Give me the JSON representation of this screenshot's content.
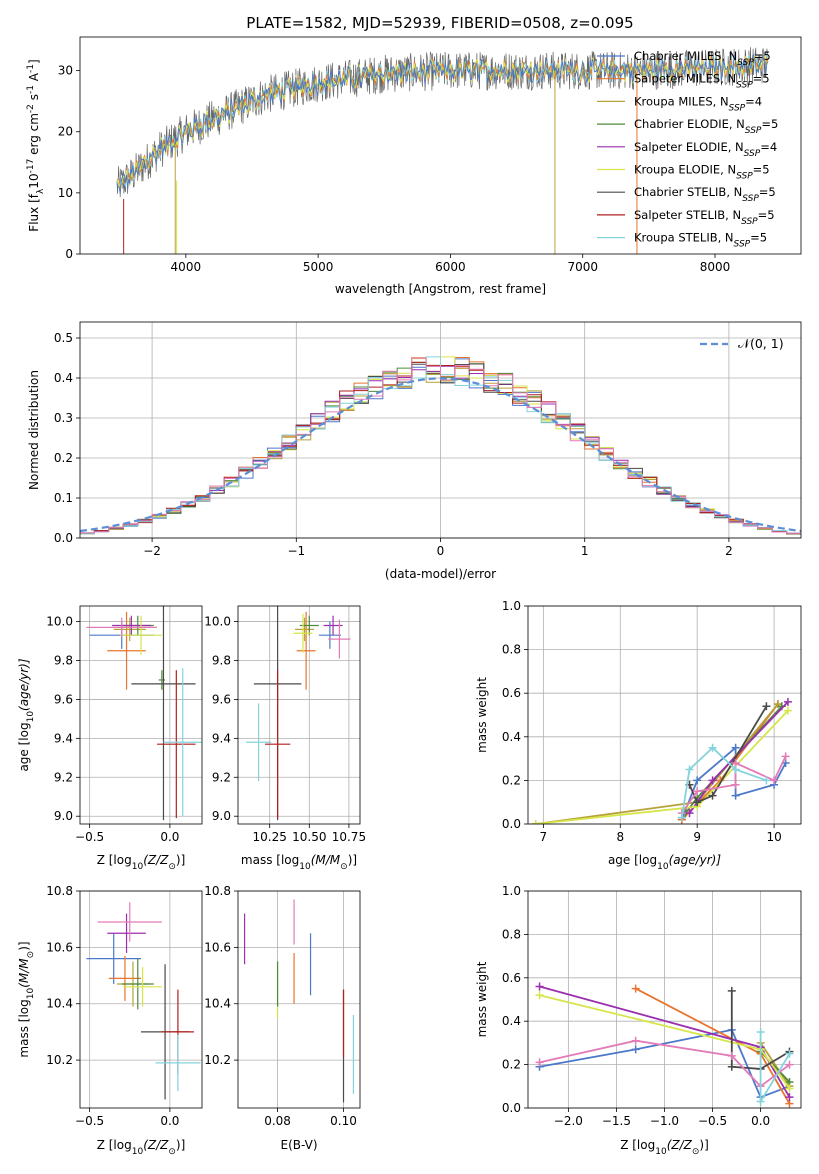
{
  "figure_title": "PLATE=1582, MJD=52939, FIBERID=0508, z=0.095",
  "colors": {
    "Chabrier MILES": "#4c78c9",
    "Salpeter MILES": "#e7752e",
    "Kroupa MILES": "#b8a13a",
    "Chabrier ELODIE": "#4f8a3c",
    "Salpeter ELODIE": "#9b2fae",
    "Kroupa ELODIE": "#d6e64a",
    "Chabrier STELIB": "#4a4a4a",
    "Salpeter STELIB": "#b21f1f",
    "Kroupa STELIB": "#84d3dc",
    "extra_pink": "#e27bb8",
    "normal": "#5b8fd6"
  },
  "chart_data": [
    {
      "id": "spectrum",
      "type": "line",
      "xlabel": "wavelength [Angstrom, rest frame]",
      "ylabel": "Flux [f",
      "ylabel_sub": "λ",
      "ylabel_rest": "10",
      "ylabel_exp": "-17",
      "ylabel_tail": " erg cm",
      "ylabel_tail_exp": "-2",
      "ylabel_tail2": " s",
      "ylabel_tail2_exp": "-1",
      "ylabel_tail3": " A",
      "ylabel_tail3_exp": "-1",
      "ylabel_end": "]",
      "xlim": [
        3200,
        8650
      ],
      "ylim": [
        0,
        35.5
      ],
      "xticks": [
        4000,
        5000,
        6000,
        7000,
        8000
      ],
      "yticks": [
        0,
        10,
        20,
        30
      ],
      "continuum": [
        [
          3480,
          11
        ],
        [
          3600,
          13
        ],
        [
          3800,
          17
        ],
        [
          4000,
          20
        ],
        [
          4300,
          23
        ],
        [
          4600,
          26
        ],
        [
          5000,
          28
        ],
        [
          5500,
          29.5
        ],
        [
          6000,
          30
        ],
        [
          6500,
          30
        ],
        [
          7000,
          30
        ],
        [
          7500,
          30
        ],
        [
          8000,
          30.5
        ],
        [
          8400,
          31
        ]
      ],
      "series": [
        {
          "name": "Chabrier MILES",
          "value": "5"
        },
        {
          "name": "Salpeter MILES",
          "value": "5"
        },
        {
          "name": "Kroupa MILES",
          "value": "4"
        },
        {
          "name": "Chabrier ELODIE",
          "value": "5"
        },
        {
          "name": "Salpeter ELODIE",
          "value": "4"
        },
        {
          "name": "Kroupa ELODIE",
          "value": "5"
        },
        {
          "name": "Chabrier STELIB",
          "value": "5"
        },
        {
          "name": "Salpeter STELIB",
          "value": "5"
        },
        {
          "name": "Kroupa STELIB",
          "value": "5"
        }
      ],
      "legend_label_suffix": ", N",
      "legend_label_sub": "SSP",
      "legend_label_eq": "=",
      "legend_position": "right",
      "grid": false
    },
    {
      "id": "residuals",
      "type": "histogram",
      "xlabel": "(data-model)/error",
      "ylabel": "Normed distribution",
      "xlim": [
        -2.5,
        2.5
      ],
      "ylim": [
        0,
        0.54
      ],
      "xticks": [
        -2,
        -1,
        0,
        1,
        2
      ],
      "yticks": [
        0.0,
        0.1,
        0.2,
        0.3,
        0.4,
        0.5
      ],
      "reference_curve": "𝒩(0, 1)",
      "legend_position": "top-right",
      "grid": true
    },
    {
      "id": "age_vs_Z",
      "type": "scatter",
      "xlabel": "Z [log",
      "xlabel_sub": "10",
      "xlabel_rest": "(Z/Z",
      "xlabel_sun": "⊙",
      "xlabel_end": ")]",
      "ylabel": "age  [log",
      "ylabel_sub": "10",
      "ylabel_rest": "(age/yr)]",
      "xlim": [
        -0.56,
        0.2
      ],
      "ylim": [
        8.96,
        10.08
      ],
      "xticks": [
        -0.5,
        0.0
      ],
      "yticks": [
        9.0,
        9.2,
        9.4,
        9.6,
        9.8,
        10.0
      ],
      "points": [
        {
          "x": -0.3,
          "xerr": 0.2,
          "y": 9.93,
          "yerr": 0.07,
          "c": "#4c78c9"
        },
        {
          "x": -0.27,
          "xerr": 0.12,
          "y": 9.85,
          "yerr": 0.2,
          "c": "#e7752e"
        },
        {
          "x": -0.25,
          "xerr": 0.1,
          "y": 9.96,
          "yerr": 0.06,
          "c": "#b8a13a"
        },
        {
          "x": -0.2,
          "xerr": 0.1,
          "y": 9.98,
          "yerr": 0.05,
          "c": "#4f8a3c"
        },
        {
          "x": -0.24,
          "xerr": 0.12,
          "y": 9.98,
          "yerr": 0.05,
          "c": "#9b2fae"
        },
        {
          "x": -0.18,
          "xerr": 0.13,
          "y": 9.93,
          "yerr": 0.1,
          "c": "#d6e64a"
        },
        {
          "x": -0.3,
          "xerr": 0.22,
          "y": 9.97,
          "yerr": 0.05,
          "c": "#e27bb8"
        },
        {
          "x": -0.05,
          "xerr": 0.02,
          "y": 9.7,
          "yerr": 0.05,
          "c": "#4f8a3c"
        },
        {
          "x": -0.04,
          "xerr": 0.2,
          "y": 9.68,
          "yerr": 0.7,
          "c": "#4a4a4a"
        },
        {
          "x": 0.04,
          "xerr": 0.12,
          "y": 9.37,
          "yerr": 0.38,
          "c": "#b21f1f"
        },
        {
          "x": 0.08,
          "xerr": 0.12,
          "y": 9.38,
          "yerr": 0.38,
          "c": "#84d3dc"
        }
      ],
      "grid": true
    },
    {
      "id": "age_vs_mass",
      "type": "scatter",
      "xlabel": "mass [log",
      "xlabel_sub": "10",
      "xlabel_rest": "(M/M",
      "xlabel_sun": "⊙",
      "xlabel_end": ")]",
      "xlim": [
        10.05,
        10.82
      ],
      "ylim": [
        8.96,
        10.08
      ],
      "xticks": [
        10.25,
        10.5,
        10.75
      ],
      "yticks": [
        9.0,
        9.2,
        9.4,
        9.6,
        9.8,
        10.0
      ],
      "points": [
        {
          "x": 10.63,
          "xerr": 0.07,
          "y": 9.93,
          "yerr": 0.07,
          "c": "#4c78c9"
        },
        {
          "x": 10.48,
          "xerr": 0.06,
          "y": 9.85,
          "yerr": 0.2,
          "c": "#e7752e"
        },
        {
          "x": 10.47,
          "xerr": 0.06,
          "y": 9.96,
          "yerr": 0.06,
          "c": "#b8a13a"
        },
        {
          "x": 10.5,
          "xerr": 0.06,
          "y": 9.98,
          "yerr": 0.05,
          "c": "#4f8a3c"
        },
        {
          "x": 10.65,
          "xerr": 0.06,
          "y": 9.98,
          "yerr": 0.05,
          "c": "#9b2fae"
        },
        {
          "x": 10.46,
          "xerr": 0.06,
          "y": 9.94,
          "yerr": 0.1,
          "c": "#d6e64a"
        },
        {
          "x": 10.69,
          "xerr": 0.07,
          "y": 9.91,
          "yerr": 0.1,
          "c": "#e27bb8"
        },
        {
          "x": 10.3,
          "xerr": 0.15,
          "y": 9.68,
          "yerr": 0.7,
          "c": "#4a4a4a"
        },
        {
          "x": 10.3,
          "xerr": 0.08,
          "y": 9.37,
          "yerr": 0.38,
          "c": "#b21f1f"
        },
        {
          "x": 10.18,
          "xerr": 0.08,
          "y": 9.38,
          "yerr": 0.2,
          "c": "#84d3dc"
        }
      ],
      "grid": true
    },
    {
      "id": "weight_vs_age",
      "type": "line",
      "xlabel": "age  [log",
      "xlabel_sub": "10",
      "xlabel_rest": "(age/yr)]",
      "ylabel": "mass weight",
      "xlim": [
        6.8,
        10.35
      ],
      "ylim": [
        0,
        1
      ],
      "xticks": [
        7,
        8,
        9,
        10
      ],
      "yticks": [
        0.0,
        0.2,
        0.4,
        0.6,
        0.8,
        1.0
      ],
      "series": [
        {
          "c": "#4c78c9",
          "pts": [
            [
              8.8,
              0.02
            ],
            [
              9.0,
              0.2
            ],
            [
              9.5,
              0.35
            ],
            [
              9.5,
              0.13
            ],
            [
              10.0,
              0.18
            ],
            [
              10.15,
              0.28
            ]
          ]
        },
        {
          "c": "#e7752e",
          "pts": [
            [
              8.8,
              0.02
            ],
            [
              9.3,
              0.2
            ],
            [
              10.05,
              0.55
            ]
          ]
        },
        {
          "c": "#b8a13a",
          "pts": [
            [
              6.9,
              0.0
            ],
            [
              9.0,
              0.1
            ],
            [
              10.05,
              0.55
            ]
          ]
        },
        {
          "c": "#4f8a3c",
          "pts": [
            [
              8.85,
              0.05
            ],
            [
              9.0,
              0.12
            ],
            [
              10.1,
              0.54
            ]
          ]
        },
        {
          "c": "#9b2fae",
          "pts": [
            [
              8.9,
              0.05
            ],
            [
              9.2,
              0.2
            ],
            [
              10.18,
              0.56
            ]
          ]
        },
        {
          "c": "#d6e64a",
          "pts": [
            [
              6.9,
              0.0
            ],
            [
              9.0,
              0.08
            ],
            [
              10.18,
              0.52
            ]
          ]
        },
        {
          "c": "#4a4a4a",
          "pts": [
            [
              8.9,
              0.18
            ],
            [
              9.0,
              0.1
            ],
            [
              9.2,
              0.13
            ],
            [
              9.9,
              0.54
            ]
          ]
        },
        {
          "c": "#e27bb8",
          "pts": [
            [
              8.8,
              0.05
            ],
            [
              9.0,
              0.15
            ],
            [
              9.5,
              0.18
            ],
            [
              9.5,
              0.28
            ],
            [
              10.0,
              0.2
            ],
            [
              10.15,
              0.31
            ]
          ]
        },
        {
          "c": "#84d3dc",
          "pts": [
            [
              8.8,
              0.03
            ],
            [
              8.9,
              0.25
            ],
            [
              9.2,
              0.35
            ],
            [
              9.5,
              0.25
            ],
            [
              9.9,
              0.2
            ]
          ]
        }
      ],
      "grid": true
    },
    {
      "id": "mass_vs_Z",
      "type": "scatter",
      "xlabel": "Z [log",
      "xlabel_sub": "10",
      "xlabel_rest": "(Z/Z",
      "xlabel_sun": "⊙",
      "xlabel_end": ")]",
      "ylabel": "mass [log",
      "ylabel_sub": "10",
      "ylabel_rest": "(M/M",
      "ylabel_sun": "⊙",
      "ylabel_end": ")]",
      "xlim": [
        -0.56,
        0.2
      ],
      "ylim": [
        10.03,
        10.8
      ],
      "xticks": [
        -0.5,
        0.0
      ],
      "yticks": [
        10.2,
        10.4,
        10.6,
        10.8
      ],
      "points": [
        {
          "x": -0.35,
          "xerr": 0.17,
          "y": 10.56,
          "yerr": 0.09,
          "c": "#4c78c9"
        },
        {
          "x": -0.28,
          "xerr": 0.1,
          "y": 10.49,
          "yerr": 0.08,
          "c": "#e7752e"
        },
        {
          "x": -0.23,
          "xerr": 0.1,
          "y": 10.47,
          "yerr": 0.08,
          "c": "#b8a13a"
        },
        {
          "x": -0.2,
          "xerr": 0.1,
          "y": 10.47,
          "yerr": 0.09,
          "c": "#4f8a3c"
        },
        {
          "x": -0.27,
          "xerr": 0.12,
          "y": 10.65,
          "yerr": 0.07,
          "c": "#9b2fae"
        },
        {
          "x": -0.17,
          "xerr": 0.12,
          "y": 10.46,
          "yerr": 0.07,
          "c": "#d6e64a"
        },
        {
          "x": -0.25,
          "xerr": 0.2,
          "y": 10.69,
          "yerr": 0.07,
          "c": "#e27bb8"
        },
        {
          "x": -0.03,
          "xerr": 0.15,
          "y": 10.3,
          "yerr": 0.24,
          "c": "#4a4a4a"
        },
        {
          "x": 0.05,
          "xerr": 0.1,
          "y": 10.3,
          "yerr": 0.15,
          "c": "#b21f1f"
        },
        {
          "x": 0.05,
          "xerr": 0.14,
          "y": 10.19,
          "yerr": 0.1,
          "c": "#84d3dc"
        }
      ],
      "grid": true
    },
    {
      "id": "mass_vs_EBV",
      "type": "scatter",
      "xlabel": "E(B-V)",
      "xlim": [
        0.068,
        0.105
      ],
      "ylim": [
        10.03,
        10.8
      ],
      "xticks": [
        0.08,
        0.1
      ],
      "yticks": [
        10.2,
        10.4,
        10.6,
        10.8
      ],
      "points": [
        {
          "x": 0.07,
          "xerr": 0,
          "y": 10.63,
          "yerr": 0.09,
          "c": "#9b2fae"
        },
        {
          "x": 0.08,
          "xerr": 0,
          "y": 10.45,
          "yerr": 0.1,
          "c": "#d6e64a"
        },
        {
          "x": 0.08,
          "xerr": 0,
          "y": 10.47,
          "yerr": 0.08,
          "c": "#4f8a3c"
        },
        {
          "x": 0.085,
          "xerr": 0,
          "y": 10.49,
          "yerr": 0.09,
          "c": "#e7752e"
        },
        {
          "x": 0.085,
          "xerr": 0,
          "y": 10.69,
          "yerr": 0.08,
          "c": "#e27bb8"
        },
        {
          "x": 0.09,
          "xerr": 0,
          "y": 10.54,
          "yerr": 0.11,
          "c": "#4c78c9"
        },
        {
          "x": 0.1,
          "xerr": 0,
          "y": 10.25,
          "yerr": 0.2,
          "c": "#4a4a4a"
        },
        {
          "x": 0.1,
          "xerr": 0,
          "y": 10.33,
          "yerr": 0.12,
          "c": "#b21f1f"
        },
        {
          "x": 0.103,
          "xerr": 0,
          "y": 10.22,
          "yerr": 0.14,
          "c": "#84d3dc"
        }
      ],
      "grid": true
    },
    {
      "id": "weight_vs_Z",
      "type": "line",
      "xlabel": "Z [log",
      "xlabel_sub": "10",
      "xlabel_rest": "(Z/Z",
      "xlabel_sun": "⊙",
      "xlabel_end": ")]",
      "ylabel": "mass weight",
      "xlim": [
        -2.42,
        0.42
      ],
      "ylim": [
        0,
        1
      ],
      "xticks": [
        -2.0,
        -1.5,
        -1.0,
        -0.5,
        0.0
      ],
      "yticks": [
        0.0,
        0.2,
        0.4,
        0.6,
        0.8,
        1.0
      ],
      "series": [
        {
          "c": "#4c78c9",
          "pts": [
            [
              -2.3,
              0.19
            ],
            [
              -1.3,
              0.27
            ],
            [
              -0.3,
              0.36
            ],
            [
              0.0,
              0.05
            ],
            [
              0.3,
              0.1
            ]
          ]
        },
        {
          "c": "#e7752e",
          "pts": [
            [
              -1.3,
              0.55
            ],
            [
              0.0,
              0.25
            ],
            [
              0.3,
              0.02
            ]
          ]
        },
        {
          "c": "#b8a13a",
          "pts": [
            [
              0.0,
              0.3
            ],
            [
              0.3,
              0.1
            ]
          ]
        },
        {
          "c": "#4f8a3c",
          "pts": [
            [
              0.0,
              0.26
            ],
            [
              0.3,
              0.12
            ]
          ]
        },
        {
          "c": "#9b2fae",
          "pts": [
            [
              -2.3,
              0.56
            ],
            [
              0.0,
              0.28
            ],
            [
              0.3,
              0.05
            ]
          ]
        },
        {
          "c": "#d6e64a",
          "pts": [
            [
              -2.3,
              0.52
            ],
            [
              0.0,
              0.27
            ],
            [
              0.3,
              0.09
            ]
          ]
        },
        {
          "c": "#4a4a4a",
          "pts": [
            [
              -0.3,
              0.54
            ],
            [
              -0.3,
              0.19
            ],
            [
              0.0,
              0.18
            ],
            [
              0.3,
              0.26
            ]
          ]
        },
        {
          "c": "#e27bb8",
          "pts": [
            [
              -2.3,
              0.21
            ],
            [
              -1.3,
              0.31
            ],
            [
              -0.3,
              0.24
            ],
            [
              0.0,
              0.1
            ],
            [
              0.3,
              0.2
            ]
          ]
        },
        {
          "c": "#84d3dc",
          "pts": [
            [
              0.0,
              0.35
            ],
            [
              0.0,
              0.03
            ],
            [
              0.3,
              0.25
            ]
          ]
        }
      ],
      "grid": true
    }
  ]
}
